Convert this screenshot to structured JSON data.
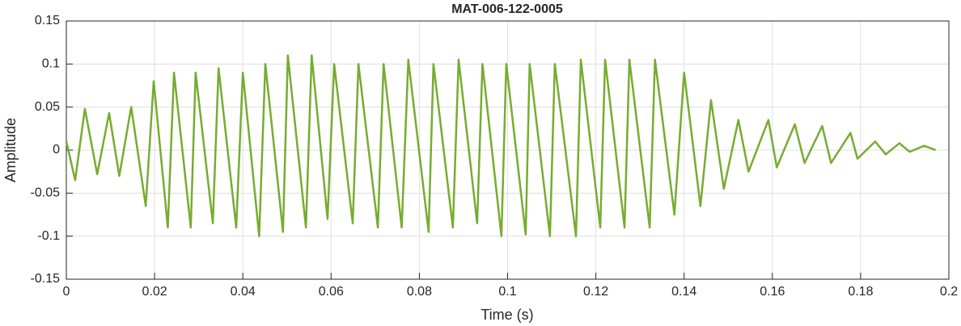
{
  "chart_data": {
    "type": "line",
    "title": "MAT-006-122-0005",
    "x_label": "Time (s)",
    "y_label": "Amplitude",
    "x": [
      0,
      0.002,
      0.0042,
      0.007,
      0.0097,
      0.012,
      0.0147,
      0.018,
      0.0198,
      0.023,
      0.0244,
      0.0282,
      0.0293,
      0.0332,
      0.0345,
      0.0385,
      0.04,
      0.0437,
      0.0451,
      0.0491,
      0.0502,
      0.0543,
      0.0556,
      0.0592,
      0.0607,
      0.0649,
      0.0662,
      0.0706,
      0.0719,
      0.076,
      0.0775,
      0.0821,
      0.0832,
      0.0876,
      0.0889,
      0.0931,
      0.0943,
      0.0986,
      0.0997,
      0.1041,
      0.105,
      0.1096,
      0.1107,
      0.1155,
      0.1166,
      0.121,
      0.1221,
      0.1265,
      0.1276,
      0.1322,
      0.1334,
      0.1378,
      0.14,
      0.1437,
      0.1461,
      0.149,
      0.1523,
      0.1546,
      0.1591,
      0.161,
      0.1651,
      0.1673,
      0.1713,
      0.1733,
      0.1777,
      0.1793,
      0.1833,
      0.1857,
      0.1888,
      0.1911,
      0.1944,
      0.197
    ],
    "series": [
      {
        "name": "Amplitude",
        "color": "#77ac30",
        "values": [
          0.01,
          -0.035,
          0.048,
          -0.028,
          0.043,
          -0.03,
          0.05,
          -0.065,
          0.08,
          -0.09,
          0.09,
          -0.09,
          0.09,
          -0.085,
          0.095,
          -0.09,
          0.09,
          -0.1,
          0.1,
          -0.095,
          0.11,
          -0.09,
          0.11,
          -0.08,
          0.1,
          -0.085,
          0.1,
          -0.09,
          0.1,
          -0.09,
          0.105,
          -0.095,
          0.1,
          -0.09,
          0.105,
          -0.085,
          0.1,
          -0.1,
          0.1,
          -0.098,
          0.1,
          -0.1,
          0.1,
          -0.1,
          0.105,
          -0.09,
          0.105,
          -0.09,
          0.105,
          -0.09,
          0.105,
          -0.075,
          0.09,
          -0.065,
          0.058,
          -0.045,
          0.035,
          -0.025,
          0.035,
          -0.02,
          0.03,
          -0.015,
          0.028,
          -0.015,
          0.02,
          -0.01,
          0.01,
          -0.005,
          0.008,
          -0.002,
          0.005,
          0
        ]
      }
    ],
    "xlim": [
      0,
      0.2
    ],
    "xticks": [
      0,
      0.02,
      0.04,
      0.06,
      0.08,
      0.1,
      0.12,
      0.14,
      0.16,
      0.18,
      0.2
    ],
    "ylim": [
      -0.15,
      0.15
    ],
    "yticks": [
      -0.15,
      -0.1,
      -0.05,
      0,
      0.05,
      0.1,
      0.15
    ],
    "grid": true
  }
}
